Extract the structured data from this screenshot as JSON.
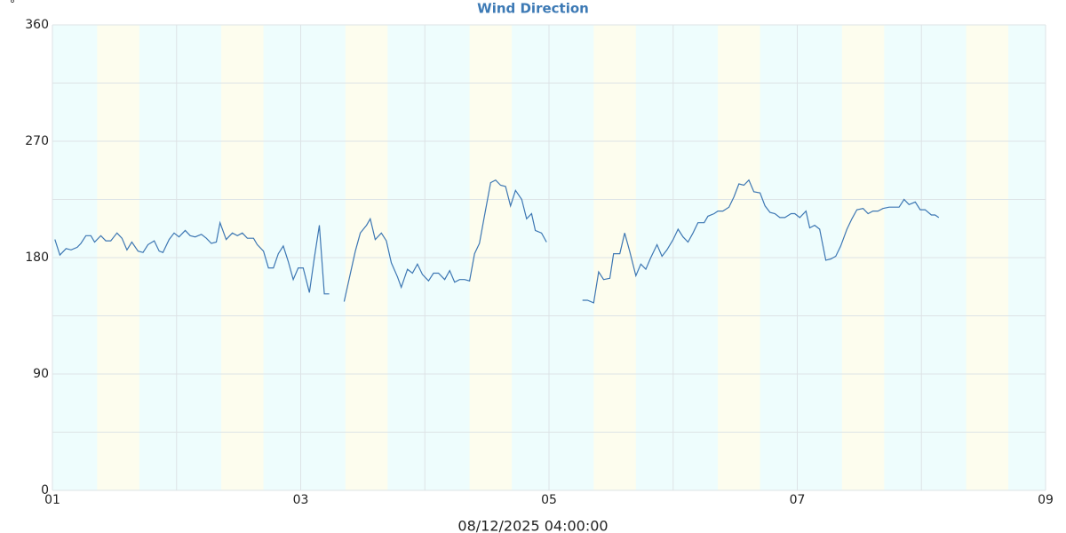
{
  "chart_data": {
    "type": "line",
    "title": "Wind Direction",
    "y_label": "°",
    "x_label": "08/12/2025 04:00:00",
    "color": "#3d77b3",
    "grid": true,
    "xlim": [
      1,
      9
    ],
    "xticks": [
      {
        "value": 1,
        "label": "01"
      },
      {
        "value": 3,
        "label": "03"
      },
      {
        "value": 5,
        "label": "05"
      },
      {
        "value": 7,
        "label": "07"
      },
      {
        "value": 9,
        "label": "09"
      }
    ],
    "ylim": [
      0,
      360
    ],
    "yticks": [
      0,
      90,
      180,
      270,
      360
    ],
    "x": [
      1.02,
      1.06,
      1.11,
      1.15,
      1.2,
      1.23,
      1.27,
      1.31,
      1.34,
      1.39,
      1.43,
      1.47,
      1.52,
      1.56,
      1.6,
      1.64,
      1.69,
      1.73,
      1.77,
      1.82,
      1.86,
      1.89,
      1.94,
      1.98,
      2.02,
      2.07,
      2.11,
      2.15,
      2.2,
      2.24,
      2.28,
      2.32,
      2.35,
      2.4,
      2.45,
      2.49,
      2.53,
      2.57,
      2.62,
      2.65,
      2.7,
      2.74,
      2.78,
      2.82,
      2.86,
      2.9,
      2.94,
      2.98,
      3.02,
      3.07,
      3.11,
      3.15,
      3.19,
      3.23,
      3.29,
      3.35,
      3.44,
      3.48,
      3.53,
      3.56,
      3.6,
      3.65,
      3.69,
      3.73,
      3.78,
      3.81,
      3.86,
      3.9,
      3.94,
      3.98,
      4.03,
      4.07,
      4.11,
      4.16,
      4.2,
      4.24,
      4.28,
      4.32,
      4.36,
      4.4,
      4.44,
      4.48,
      4.53,
      4.57,
      4.61,
      4.65,
      4.69,
      4.73,
      4.78,
      4.82,
      4.86,
      4.89,
      4.94,
      4.98,
      5.12,
      5.27,
      5.31,
      5.36,
      5.4,
      5.44,
      5.49,
      5.52,
      5.57,
      5.61,
      5.65,
      5.7,
      5.74,
      5.78,
      5.82,
      5.87,
      5.91,
      5.95,
      6.0,
      6.04,
      6.08,
      6.12,
      6.16,
      6.2,
      6.25,
      6.28,
      6.33,
      6.36,
      6.4,
      6.45,
      6.49,
      6.53,
      6.57,
      6.61,
      6.65,
      6.7,
      6.74,
      6.78,
      6.82,
      6.86,
      6.9,
      6.95,
      6.98,
      7.02,
      7.07,
      7.1,
      7.14,
      7.18,
      7.23,
      7.27,
      7.31,
      7.35,
      7.4,
      7.44,
      7.48,
      7.53,
      7.57,
      7.61,
      7.65,
      7.69,
      7.74,
      7.78,
      7.82,
      7.86,
      7.9,
      7.95,
      7.99,
      8.03,
      8.08,
      8.11,
      8.14
    ],
    "values": [
      194,
      182,
      187,
      186,
      188,
      191,
      197,
      197,
      192,
      197,
      193,
      193,
      199,
      195,
      186,
      192,
      185,
      184,
      190,
      193,
      185,
      184,
      194,
      199,
      196,
      201,
      197,
      196,
      198,
      195,
      191,
      192,
      207,
      194,
      199,
      197,
      199,
      195,
      195,
      190,
      185,
      172,
      172,
      183,
      189,
      177,
      163,
      172,
      172,
      153,
      180,
      205,
      152,
      152,
      null,
      146,
      185,
      199,
      205,
      210,
      194,
      199,
      193,
      176,
      165,
      157,
      171,
      168,
      175,
      167,
      162,
      168,
      168,
      163,
      170,
      161,
      163,
      163,
      162,
      183,
      191,
      212,
      238,
      240,
      236,
      235,
      220,
      232,
      225,
      210,
      214,
      201,
      199,
      192,
      null,
      147,
      147,
      145,
      169,
      163,
      164,
      183,
      183,
      199,
      185,
      166,
      175,
      171,
      180,
      190,
      181,
      186,
      194,
      202,
      196,
      192,
      199,
      207,
      207,
      212,
      214,
      216,
      216,
      219,
      227,
      237,
      236,
      240,
      231,
      230,
      220,
      215,
      214,
      211,
      211,
      214,
      214,
      211,
      216,
      203,
      205,
      202,
      178,
      179,
      181,
      189,
      202,
      210,
      217,
      218,
      214,
      216,
      216,
      218,
      219,
      219,
      219,
      225,
      221,
      223,
      217,
      217,
      213,
      213,
      211
    ]
  }
}
